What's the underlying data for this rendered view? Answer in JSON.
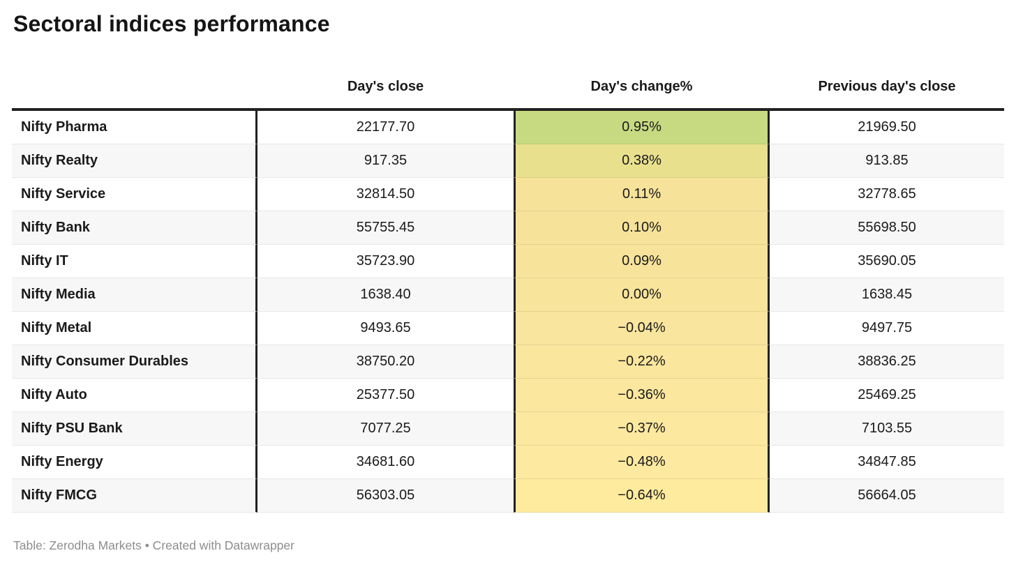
{
  "title": "Sectoral indices performance",
  "chart_data": {
    "type": "table",
    "title": "Sectoral indices performance",
    "columns": [
      "",
      "Day's close",
      "Day's change%",
      "Previous day's close"
    ],
    "rows": [
      {
        "index": "Nifty Pharma",
        "days_close": "22177.70",
        "days_change_pct": "0.95%",
        "previous_close": "21969.50",
        "change_cell_color": "#c8da81"
      },
      {
        "index": "Nifty Realty",
        "days_close": "917.35",
        "days_change_pct": "0.38%",
        "previous_close": "913.85",
        "change_cell_color": "#e9e08e"
      },
      {
        "index": "Nifty Service",
        "days_close": "32814.50",
        "days_change_pct": "0.11%",
        "previous_close": "32778.65",
        "change_cell_color": "#f6e299"
      },
      {
        "index": "Nifty Bank",
        "days_close": "55755.45",
        "days_change_pct": "0.10%",
        "previous_close": "55698.50",
        "change_cell_color": "#f6e299"
      },
      {
        "index": "Nifty IT",
        "days_close": "35723.90",
        "days_change_pct": "0.09%",
        "previous_close": "35690.05",
        "change_cell_color": "#f7e39a"
      },
      {
        "index": "Nifty Media",
        "days_close": "1638.40",
        "days_change_pct": "0.00%",
        "previous_close": "1638.45",
        "change_cell_color": "#f8e49b"
      },
      {
        "index": "Nifty Metal",
        "days_close": "9493.65",
        "days_change_pct": "−0.04%",
        "previous_close": "9497.75",
        "change_cell_color": "#f9e59d"
      },
      {
        "index": "Nifty Consumer Durables",
        "days_close": "38750.20",
        "days_change_pct": "−0.22%",
        "previous_close": "38836.25",
        "change_cell_color": "#fae69d"
      },
      {
        "index": "Nifty Auto",
        "days_close": "25377.50",
        "days_change_pct": "−0.36%",
        "previous_close": "25469.25",
        "change_cell_color": "#fbe79e"
      },
      {
        "index": "Nifty PSU Bank",
        "days_close": "7077.25",
        "days_change_pct": "−0.37%",
        "previous_close": "7103.55",
        "change_cell_color": "#fce89f"
      },
      {
        "index": "Nifty Energy",
        "days_close": "34681.60",
        "days_change_pct": "−0.48%",
        "previous_close": "34847.85",
        "change_cell_color": "#fde9a0"
      },
      {
        "index": "Nifty FMCG",
        "days_close": "56303.05",
        "days_change_pct": "−0.64%",
        "previous_close": "56664.05",
        "change_cell_color": "#ffeb9e"
      }
    ],
    "layout_hints": {
      "heatmap_column": "Day's change%",
      "row_stripe_color": "#f7f7f7",
      "rule_color": "#212121"
    }
  },
  "footer": {
    "credit": "Table: Zerodha Markets • Created with Datawrapper"
  }
}
